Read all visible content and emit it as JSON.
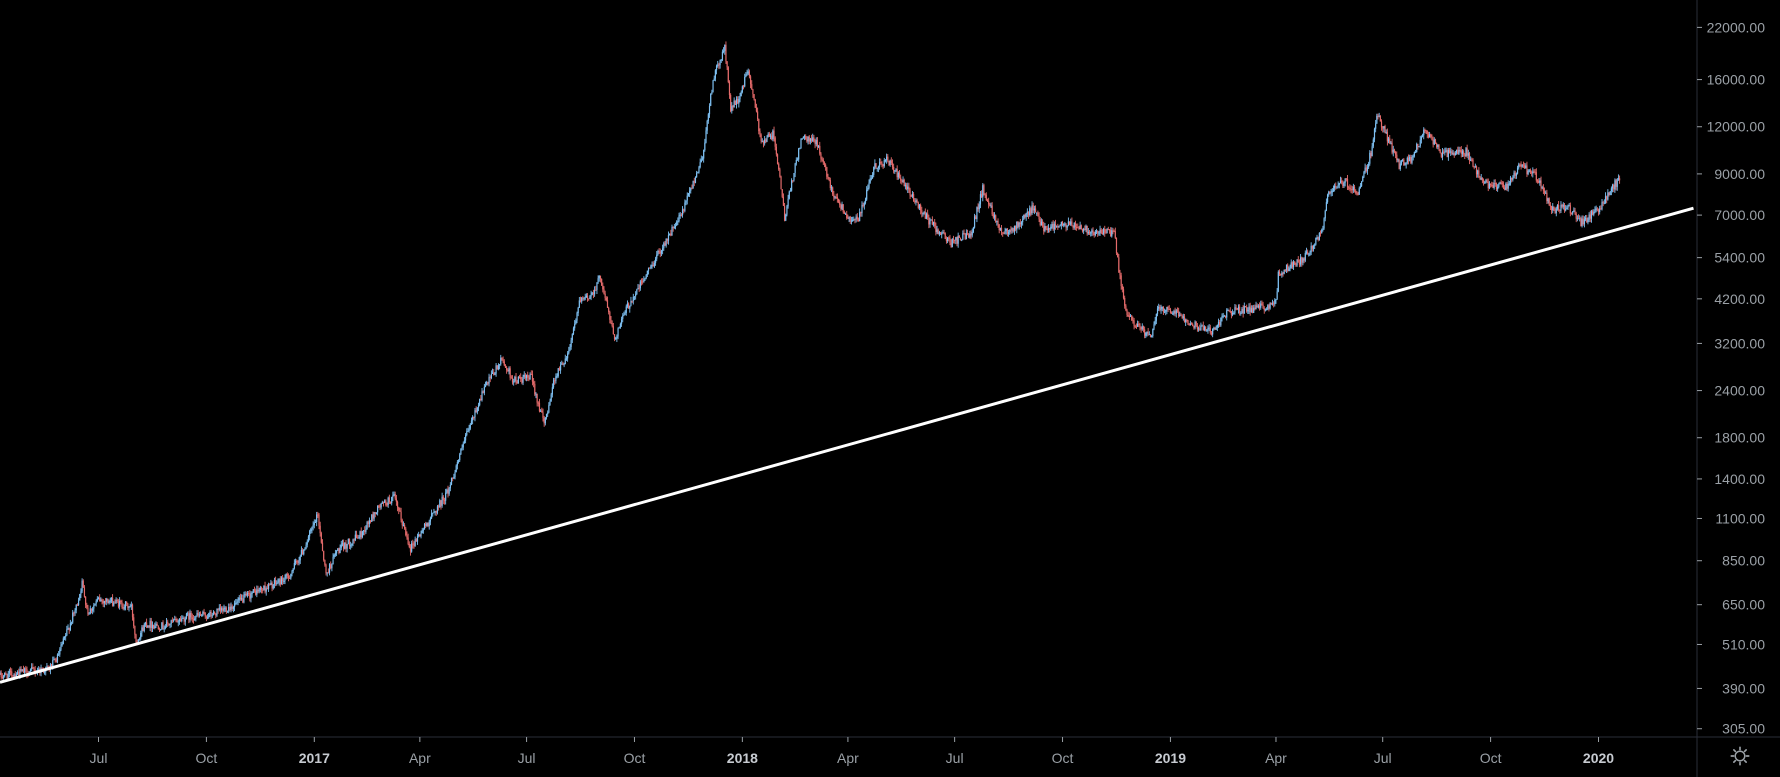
{
  "chart_data": {
    "type": "candlestick",
    "y_scale": "log",
    "ylim": [
      290,
      26000
    ],
    "xlim": [
      "2016-04-08",
      "2020-03-25"
    ],
    "y_ticks": [
      "22000.00",
      "16000.00",
      "12000.00",
      "9000.00",
      "7000.00",
      "5400.00",
      "4200.00",
      "3200.00",
      "2400.00",
      "1800.00",
      "1400.00",
      "1100.00",
      "850.00",
      "650.00",
      "510.00",
      "390.00",
      "305.00"
    ],
    "x_ticks": [
      {
        "label": "Jul",
        "date": "2016-07-01",
        "bold": false
      },
      {
        "label": "Oct",
        "date": "2016-10-01",
        "bold": false
      },
      {
        "label": "2017",
        "date": "2017-01-01",
        "bold": true
      },
      {
        "label": "Apr",
        "date": "2017-04-01",
        "bold": false
      },
      {
        "label": "Jul",
        "date": "2017-07-01",
        "bold": false
      },
      {
        "label": "Oct",
        "date": "2017-10-01",
        "bold": false
      },
      {
        "label": "2018",
        "date": "2018-01-01",
        "bold": true
      },
      {
        "label": "Apr",
        "date": "2018-04-01",
        "bold": false
      },
      {
        "label": "Jul",
        "date": "2018-07-01",
        "bold": false
      },
      {
        "label": "Oct",
        "date": "2018-10-01",
        "bold": false
      },
      {
        "label": "2019",
        "date": "2019-01-01",
        "bold": true
      },
      {
        "label": "Apr",
        "date": "2019-04-01",
        "bold": false
      },
      {
        "label": "Jul",
        "date": "2019-07-01",
        "bold": false
      },
      {
        "label": "Oct",
        "date": "2019-10-01",
        "bold": false
      },
      {
        "label": "2020",
        "date": "2020-01-01",
        "bold": true
      }
    ],
    "series": [
      {
        "kind": "close",
        "points": [
          [
            "2016-04-08",
            420
          ],
          [
            "2016-04-25",
            430
          ],
          [
            "2016-05-20",
            440
          ],
          [
            "2016-05-27",
            470
          ],
          [
            "2016-06-05",
            560
          ],
          [
            "2016-06-12",
            640
          ],
          [
            "2016-06-17",
            740
          ],
          [
            "2016-06-22",
            620
          ],
          [
            "2016-07-01",
            670
          ],
          [
            "2016-07-15",
            660
          ],
          [
            "2016-07-29",
            640
          ],
          [
            "2016-08-02",
            520
          ],
          [
            "2016-08-10",
            580
          ],
          [
            "2016-08-25",
            570
          ],
          [
            "2016-09-15",
            605
          ],
          [
            "2016-10-05",
            610
          ],
          [
            "2016-10-25",
            650
          ],
          [
            "2016-11-10",
            700
          ],
          [
            "2016-11-25",
            730
          ],
          [
            "2016-12-10",
            770
          ],
          [
            "2016-12-22",
            900
          ],
          [
            "2017-01-04",
            1120
          ],
          [
            "2017-01-11",
            780
          ],
          [
            "2017-01-20",
            900
          ],
          [
            "2017-02-10",
            1000
          ],
          [
            "2017-02-25",
            1180
          ],
          [
            "2017-03-10",
            1250
          ],
          [
            "2017-03-24",
            920
          ],
          [
            "2017-04-10",
            1100
          ],
          [
            "2017-04-25",
            1300
          ],
          [
            "2017-05-10",
            1800
          ],
          [
            "2017-05-25",
            2400
          ],
          [
            "2017-06-10",
            2900
          ],
          [
            "2017-06-20",
            2550
          ],
          [
            "2017-07-05",
            2600
          ],
          [
            "2017-07-16",
            1950
          ],
          [
            "2017-07-25",
            2600
          ],
          [
            "2017-08-05",
            3000
          ],
          [
            "2017-08-15",
            4100
          ],
          [
            "2017-08-25",
            4300
          ],
          [
            "2017-09-02",
            4800
          ],
          [
            "2017-09-14",
            3300
          ],
          [
            "2017-09-25",
            4000
          ],
          [
            "2017-10-10",
            4800
          ],
          [
            "2017-10-25",
            5800
          ],
          [
            "2017-11-10",
            7000
          ],
          [
            "2017-11-28",
            10000
          ],
          [
            "2017-12-07",
            16000
          ],
          [
            "2017-12-17",
            19500
          ],
          [
            "2017-12-22",
            13500
          ],
          [
            "2017-12-28",
            14000
          ],
          [
            "2018-01-06",
            17000
          ],
          [
            "2018-01-17",
            11000
          ],
          [
            "2018-01-28",
            11500
          ],
          [
            "2018-02-06",
            6900
          ],
          [
            "2018-02-20",
            11100
          ],
          [
            "2018-03-05",
            11000
          ],
          [
            "2018-03-18",
            8200
          ],
          [
            "2018-04-01",
            6900
          ],
          [
            "2018-04-10",
            6800
          ],
          [
            "2018-04-24",
            9400
          ],
          [
            "2018-05-05",
            9800
          ],
          [
            "2018-05-20",
            8300
          ],
          [
            "2018-06-10",
            6700
          ],
          [
            "2018-06-28",
            5900
          ],
          [
            "2018-07-15",
            6300
          ],
          [
            "2018-07-25",
            8200
          ],
          [
            "2018-08-10",
            6300
          ],
          [
            "2018-08-25",
            6600
          ],
          [
            "2018-09-05",
            7300
          ],
          [
            "2018-09-15",
            6500
          ],
          [
            "2018-10-10",
            6600
          ],
          [
            "2018-10-30",
            6300
          ],
          [
            "2018-11-14",
            6300
          ],
          [
            "2018-11-20",
            4500
          ],
          [
            "2018-11-25",
            3800
          ],
          [
            "2018-12-15",
            3300
          ],
          [
            "2018-12-22",
            4000
          ],
          [
            "2019-01-05",
            3900
          ],
          [
            "2019-01-20",
            3600
          ],
          [
            "2019-02-05",
            3450
          ],
          [
            "2019-02-20",
            3900
          ],
          [
            "2019-03-15",
            3950
          ],
          [
            "2019-04-01",
            4100
          ],
          [
            "2019-04-03",
            4900
          ],
          [
            "2019-04-25",
            5400
          ],
          [
            "2019-05-10",
            6300
          ],
          [
            "2019-05-15",
            8000
          ],
          [
            "2019-05-30",
            8600
          ],
          [
            "2019-06-10",
            8000
          ],
          [
            "2019-06-22",
            10500
          ],
          [
            "2019-06-26",
            13000
          ],
          [
            "2019-07-05",
            11200
          ],
          [
            "2019-07-15",
            9500
          ],
          [
            "2019-07-25",
            9800
          ],
          [
            "2019-08-06",
            11800
          ],
          [
            "2019-08-20",
            10200
          ],
          [
            "2019-09-10",
            10300
          ],
          [
            "2019-09-24",
            8500
          ],
          [
            "2019-10-15",
            8300
          ],
          [
            "2019-10-26",
            9500
          ],
          [
            "2019-11-10",
            8800
          ],
          [
            "2019-11-22",
            7200
          ],
          [
            "2019-12-05",
            7400
          ],
          [
            "2019-12-17",
            6700
          ],
          [
            "2020-01-01",
            7200
          ],
          [
            "2020-01-14",
            8400
          ],
          [
            "2020-01-20",
            8700
          ]
        ]
      },
      {
        "kind": "trendline",
        "name": "",
        "points": [
          [
            "2016-04-08",
            405
          ],
          [
            "2020-03-22",
            7300
          ]
        ]
      }
    ]
  },
  "colors": {
    "background": "#000000",
    "up": "#7ec0f2",
    "down": "#e56b6b",
    "trendline": "#ffffff",
    "axis_text": "#9aa0a6",
    "axis_line": "#2a2e39"
  },
  "toolbar": {
    "settings_icon": "gear-icon"
  }
}
